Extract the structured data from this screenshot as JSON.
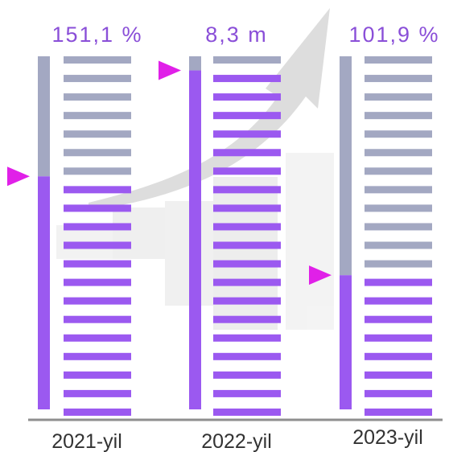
{
  "chart_data": {
    "type": "bar",
    "categories": [
      "2021-yil",
      "2022-yil",
      "2023-yil"
    ],
    "series": [
      {
        "value_labels": [
          "151,1 %",
          "8,3 m",
          "101,9 %"
        ],
        "fill_fraction": [
          0.66,
          0.96,
          0.38
        ]
      }
    ],
    "title": "",
    "xlabel": "",
    "ylabel": "",
    "ylim": [
      0,
      1
    ],
    "grid": false,
    "legend": "none"
  },
  "colors": {
    "filled": "#9b59f0",
    "empty": "#a3a8c2",
    "marker": "#e020e8",
    "axis": "#8f8f8f",
    "value_text": "#8a4fd8"
  },
  "icons": {
    "marker": "triangle-pointer-icon",
    "background": "growth-arrow-icon"
  }
}
